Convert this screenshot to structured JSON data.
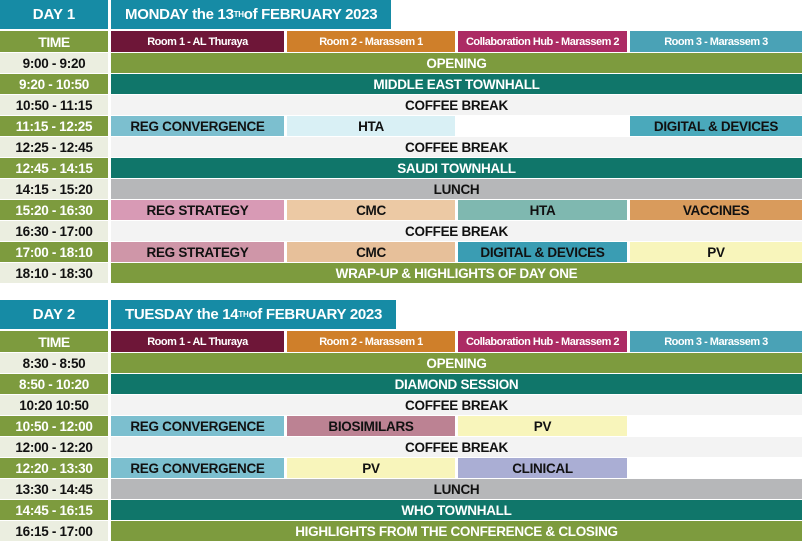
{
  "time_header": "TIME",
  "rooms": [
    {
      "label": "Room 1 - AL Thuraya",
      "color": "#6e1638"
    },
    {
      "label": "Room 2 -  Marassem 1",
      "color": "#cf7f2a"
    },
    {
      "label": "Collaboration Hub - Marassem 2",
      "color": "#ac2b64"
    },
    {
      "label": "Room 3 - Marassem 3",
      "color": "#4aa2b6"
    }
  ],
  "colors": {
    "header": "#168ba5",
    "olive": "#7d9b3e",
    "teal": "#10766a",
    "lunch": "#b6b7b9",
    "coffee": "#f3f3f3"
  },
  "days": [
    {
      "label": "DAY 1",
      "date_pre": "MONDAY the 13",
      "date_sup": "TH",
      "date_post": " of FEBRUARY  2023",
      "rows": [
        {
          "time": "9:00 - 9:20",
          "style": "light",
          "cells": [
            {
              "text": "OPENING",
              "span": 4,
              "bg": "#7d9b3e",
              "fg": "#fff"
            }
          ]
        },
        {
          "time": "9:20 - 10:50",
          "style": "green",
          "cells": [
            {
              "text": "MIDDLE EAST TOWNHALL",
              "span": 4,
              "bg": "#10766a",
              "fg": "#fff"
            }
          ]
        },
        {
          "time": "10:50 - 11:15",
          "style": "light",
          "cells": [
            {
              "text": "COFFEE BREAK",
              "span": 4,
              "bg": "#f3f3f3",
              "fg": "#111"
            }
          ]
        },
        {
          "time": "11:15 - 12:25",
          "style": "green",
          "cells": [
            {
              "text": "REG CONVERGENCE",
              "span": 1,
              "bg": "#7cbfcf",
              "fg": "#111"
            },
            {
              "text": "HTA",
              "span": 1,
              "bg": "#d9f0f5",
              "fg": "#111"
            },
            {
              "text": "",
              "span": 1,
              "bg": "#ffffff",
              "fg": "#111"
            },
            {
              "text": "DIGITAL & DEVICES",
              "span": 1,
              "bg": "#4aa9bb",
              "fg": "#111"
            }
          ]
        },
        {
          "time": "12:25 - 12:45",
          "style": "light",
          "cells": [
            {
              "text": "COFFEE BREAK",
              "span": 4,
              "bg": "#f3f3f3",
              "fg": "#111"
            }
          ]
        },
        {
          "time": "12:45 -  14:15",
          "style": "green",
          "cells": [
            {
              "text": "SAUDI TOWNHALL",
              "span": 4,
              "bg": "#10766a",
              "fg": "#fff"
            }
          ]
        },
        {
          "time": "14:15 - 15:20",
          "style": "light",
          "cells": [
            {
              "text": "LUNCH",
              "span": 4,
              "bg": "#b6b7b9",
              "fg": "#111"
            }
          ]
        },
        {
          "time": "15:20 - 16:30",
          "style": "green",
          "cells": [
            {
              "text": "REG STRATEGY",
              "span": 1,
              "bg": "#d89ab5",
              "fg": "#111"
            },
            {
              "text": "CMC",
              "span": 1,
              "bg": "#ecc9a4",
              "fg": "#111"
            },
            {
              "text": "HTA",
              "span": 1,
              "bg": "#7fb8b0",
              "fg": "#111"
            },
            {
              "text": "VACCINES",
              "span": 1,
              "bg": "#d99b5c",
              "fg": "#111"
            }
          ]
        },
        {
          "time": "16:30 - 17:00",
          "style": "light",
          "cells": [
            {
              "text": "COFFEE BREAK",
              "span": 4,
              "bg": "#f3f3f3",
              "fg": "#111"
            }
          ]
        },
        {
          "time": "17:00 - 18:10",
          "style": "green",
          "cells": [
            {
              "text": "REG STRATEGY",
              "span": 1,
              "bg": "#cf96a8",
              "fg": "#111"
            },
            {
              "text": "CMC",
              "span": 1,
              "bg": "#e7c09a",
              "fg": "#111"
            },
            {
              "text": "DIGITAL & DEVICES",
              "span": 1,
              "bg": "#3a9db3",
              "fg": "#111"
            },
            {
              "text": "PV",
              "span": 1,
              "bg": "#f8f5bb",
              "fg": "#111"
            }
          ]
        },
        {
          "time": "18:10 - 18:30",
          "style": "light",
          "cells": [
            {
              "text": "WRAP-UP & HIGHLIGHTS OF DAY ONE",
              "span": 4,
              "bg": "#7d9b3e",
              "fg": "#fff"
            }
          ]
        }
      ]
    },
    {
      "label": "DAY 2",
      "date_pre": "TUESDAY the  14",
      "date_sup": "TH",
      "date_post": " of FEBRUARY 2023",
      "rows": [
        {
          "time": "8:30 - 8:50",
          "style": "light",
          "cells": [
            {
              "text": "OPENING",
              "span": 4,
              "bg": "#7d9b3e",
              "fg": "#fff"
            }
          ]
        },
        {
          "time": "8:50 - 10:20",
          "style": "green",
          "cells": [
            {
              "text": "DIAMOND SESSION",
              "span": 4,
              "bg": "#10766a",
              "fg": "#fff"
            }
          ]
        },
        {
          "time": "10:20 10:50",
          "style": "light",
          "cells": [
            {
              "text": "COFFEE BREAK",
              "span": 4,
              "bg": "#f3f3f3",
              "fg": "#111"
            }
          ]
        },
        {
          "time": "10:50 - 12:00",
          "style": "green",
          "cells": [
            {
              "text": "REG CONVERGENCE",
              "span": 1,
              "bg": "#7cbfcf",
              "fg": "#111"
            },
            {
              "text": "BIOSIMILARS",
              "span": 1,
              "bg": "#bc8293",
              "fg": "#111"
            },
            {
              "text": "PV",
              "span": 1,
              "bg": "#f8f5bb",
              "fg": "#111"
            },
            {
              "text": "",
              "span": 1,
              "bg": "#ffffff",
              "fg": "#111"
            }
          ]
        },
        {
          "time": "12:00 - 12:20",
          "style": "light",
          "cells": [
            {
              "text": "COFFEE BREAK",
              "span": 4,
              "bg": "#f3f3f3",
              "fg": "#111"
            }
          ]
        },
        {
          "time": "12:20 - 13:30",
          "style": "green",
          "cells": [
            {
              "text": "REG CONVERGENCE",
              "span": 1,
              "bg": "#7cbfcf",
              "fg": "#111"
            },
            {
              "text": "PV",
              "span": 1,
              "bg": "#f8f5bb",
              "fg": "#111"
            },
            {
              "text": "CLINICAL",
              "span": 1,
              "bg": "#aaaed4",
              "fg": "#111"
            },
            {
              "text": "",
              "span": 1,
              "bg": "#ffffff",
              "fg": "#111"
            }
          ]
        },
        {
          "time": "13:30 - 14:45",
          "style": "light",
          "cells": [
            {
              "text": "LUNCH",
              "span": 4,
              "bg": "#b6b7b9",
              "fg": "#111"
            }
          ]
        },
        {
          "time": "14:45 - 16:15",
          "style": "green",
          "cells": [
            {
              "text": "WHO TOWNHALL",
              "span": 4,
              "bg": "#10766a",
              "fg": "#fff"
            }
          ]
        },
        {
          "time": "16:15 - 17:00",
          "style": "light",
          "cells": [
            {
              "text": "HIGHLIGHTS FROM THE CONFERENCE & CLOSING",
              "span": 4,
              "bg": "#7d9b3e",
              "fg": "#fff"
            }
          ]
        }
      ]
    }
  ]
}
